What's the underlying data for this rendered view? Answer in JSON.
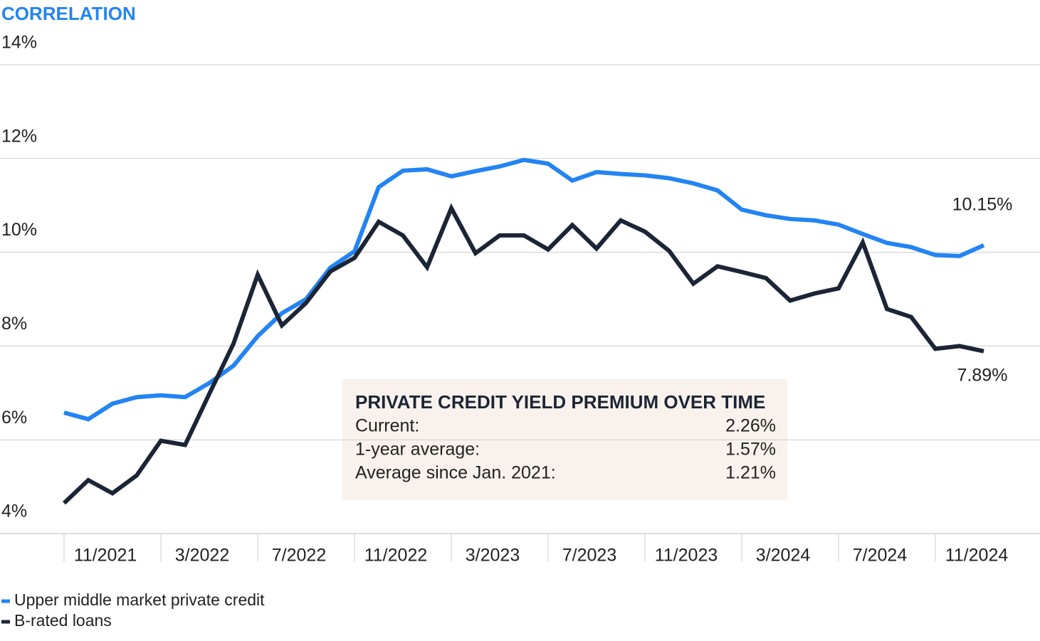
{
  "chart_data": {
    "type": "line",
    "title": "CORRELATION",
    "categories": [
      null,
      null,
      "11/2021",
      null,
      null,
      null,
      "3/2022",
      null,
      null,
      null,
      "7/2022",
      null,
      null,
      null,
      "11/2022",
      null,
      null,
      null,
      "3/2023",
      null,
      null,
      null,
      "7/2023",
      null,
      null,
      null,
      "11/2023",
      null,
      null,
      null,
      "3/2024",
      null,
      null,
      null,
      "7/2024",
      null,
      null,
      null,
      "11/2024"
    ],
    "series": [
      {
        "name": "Upper middle market private credit",
        "color": "#2384f2",
        "values": [
          6.58,
          6.44,
          6.77,
          6.91,
          6.95,
          6.91,
          7.21,
          7.58,
          8.21,
          8.7,
          9.0,
          9.67,
          10.02,
          11.39,
          11.74,
          11.77,
          11.62,
          11.73,
          11.83,
          11.97,
          11.89,
          11.53,
          11.71,
          11.67,
          11.64,
          11.58,
          11.47,
          11.32,
          10.91,
          10.79,
          10.71,
          10.68,
          10.59,
          10.39,
          10.2,
          10.11,
          9.94,
          9.92,
          10.15
        ],
        "value_labels": {
          "38": "10.15%"
        }
      },
      {
        "name": "B-rated loans",
        "color": "#1c2535",
        "values": [
          4.65,
          5.14,
          4.86,
          5.24,
          5.98,
          5.89,
          6.98,
          8.05,
          9.52,
          8.44,
          8.92,
          9.59,
          9.88,
          10.65,
          10.36,
          9.68,
          10.94,
          9.98,
          10.36,
          10.36,
          10.06,
          10.58,
          10.08,
          10.68,
          10.44,
          10.03,
          9.33,
          9.7,
          9.58,
          9.45,
          8.97,
          9.12,
          9.23,
          10.21,
          8.79,
          8.62,
          7.94,
          8.0,
          7.89
        ],
        "value_labels": {
          "38": "7.89%"
        }
      }
    ],
    "ylim": [
      4,
      14
    ],
    "yticks": [
      {
        "value": 4,
        "label": "4%"
      },
      {
        "value": 6,
        "label": "6%"
      },
      {
        "value": 8,
        "label": "8%"
      },
      {
        "value": 10,
        "label": "10%"
      },
      {
        "value": 12,
        "label": "12%"
      },
      {
        "value": 14,
        "label": "14%"
      }
    ],
    "grid": true,
    "legend": "bottom-left",
    "box": {
      "title": "PRIVATE CREDIT YIELD PREMIUM OVER TIME",
      "rows": [
        [
          "Current:",
          "2.26%"
        ],
        [
          "1-year average:",
          "1.57%"
        ],
        [
          "Average since Jan. 2021:",
          "1.21%"
        ]
      ]
    }
  }
}
